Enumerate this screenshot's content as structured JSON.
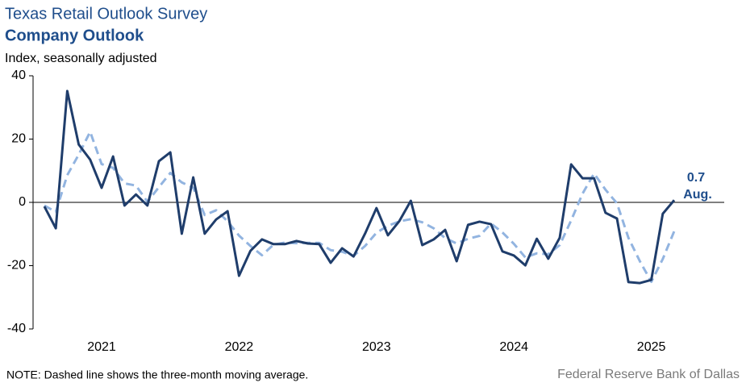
{
  "chart_data": {
    "type": "line",
    "title": "Texas Retail Outlook Survey",
    "subtitle": "Company Outlook",
    "y_label": "Index, seasonally adjusted",
    "note": "NOTE: Dashed line shows the three-month moving average.",
    "source": "Federal Reserve Bank of Dallas",
    "annotation": "Aug.",
    "categories": [
      null,
      null,
      null,
      null,
      null,
      "2021",
      null,
      null,
      null,
      null,
      null,
      null,
      null,
      null,
      null,
      null,
      null,
      "2022",
      null,
      null,
      null,
      null,
      null,
      null,
      null,
      null,
      null,
      null,
      null,
      "2023",
      null,
      null,
      null,
      null,
      null,
      null,
      null,
      null,
      null,
      null,
      null,
      "2024",
      null,
      null,
      null,
      null,
      null,
      null,
      null,
      null,
      null,
      null,
      null,
      "2025",
      null,
      null
    ],
    "series": [
      {
        "color": "#1f3d6b",
        "dashed": false,
        "values": [
          -1.3,
          -8.2,
          35.2,
          18.3,
          13.5,
          4.6,
          14.5,
          -1.0,
          2.5,
          -1.0,
          13.0,
          15.8,
          -9.9,
          7.9,
          -9.9,
          -5.4,
          -2.8,
          -23.2,
          -15.3,
          -11.7,
          -13.2,
          -13.2,
          -12.2,
          -13.0,
          -13.2,
          -19.1,
          -14.5,
          -17.1,
          -9.9,
          -1.8,
          -10.4,
          -5.9,
          0.5,
          -13.5,
          -11.7,
          -8.7,
          -18.6,
          -7.1,
          -6.1,
          -6.9,
          -15.5,
          -16.8,
          -19.9,
          -11.5,
          -17.8,
          -11.2,
          12.0,
          7.6,
          7.6,
          -3.3,
          -5.1,
          -25.2,
          -25.5,
          -24.5,
          -3.6,
          0.7
        ]
      },
      {
        "color": "#92b4e0",
        "dashed": true,
        "values": [
          -1.0,
          -3.0,
          8.6,
          15.1,
          22.3,
          12.1,
          10.9,
          6.0,
          5.3,
          0.2,
          4.8,
          9.3,
          6.3,
          4.6,
          -4.0,
          -2.5,
          -6.0,
          -10.5,
          -13.8,
          -16.7,
          -13.4,
          -12.7,
          -12.9,
          -12.8,
          -12.8,
          -15.1,
          -15.6,
          -16.9,
          -13.8,
          -9.6,
          -7.4,
          -6.0,
          -5.3,
          -6.3,
          -8.2,
          -11.3,
          -13.0,
          -11.5,
          -10.6,
          -6.7,
          -9.5,
          -13.1,
          -17.4,
          -16.1,
          -16.4,
          -13.5,
          -5.7,
          2.8,
          9.1,
          4.0,
          -0.3,
          -11.2,
          -18.6,
          -25.1,
          -17.9,
          -9.1
        ]
      }
    ],
    "ylim": [
      -40,
      40
    ],
    "yticks": [
      -40,
      -20,
      0,
      20,
      40
    ]
  }
}
